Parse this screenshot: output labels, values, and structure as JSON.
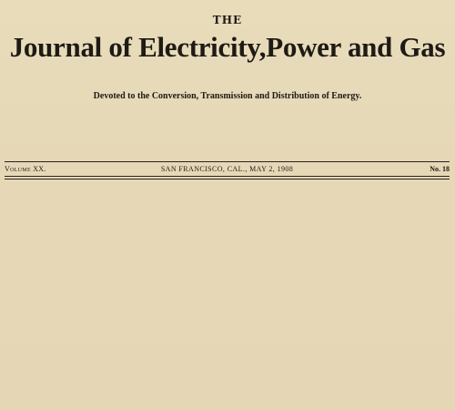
{
  "masthead": {
    "the": "THE",
    "title": "Journal of Electricity,Power and Gas",
    "tagline": "Devoted to the Conversion, Transmission and Distribution of Energy."
  },
  "dateline": {
    "volume": "Volume XX.",
    "place_date": "SAN FRANCISCO, CAL., MAY 2, 1908",
    "number": "No. 18"
  }
}
